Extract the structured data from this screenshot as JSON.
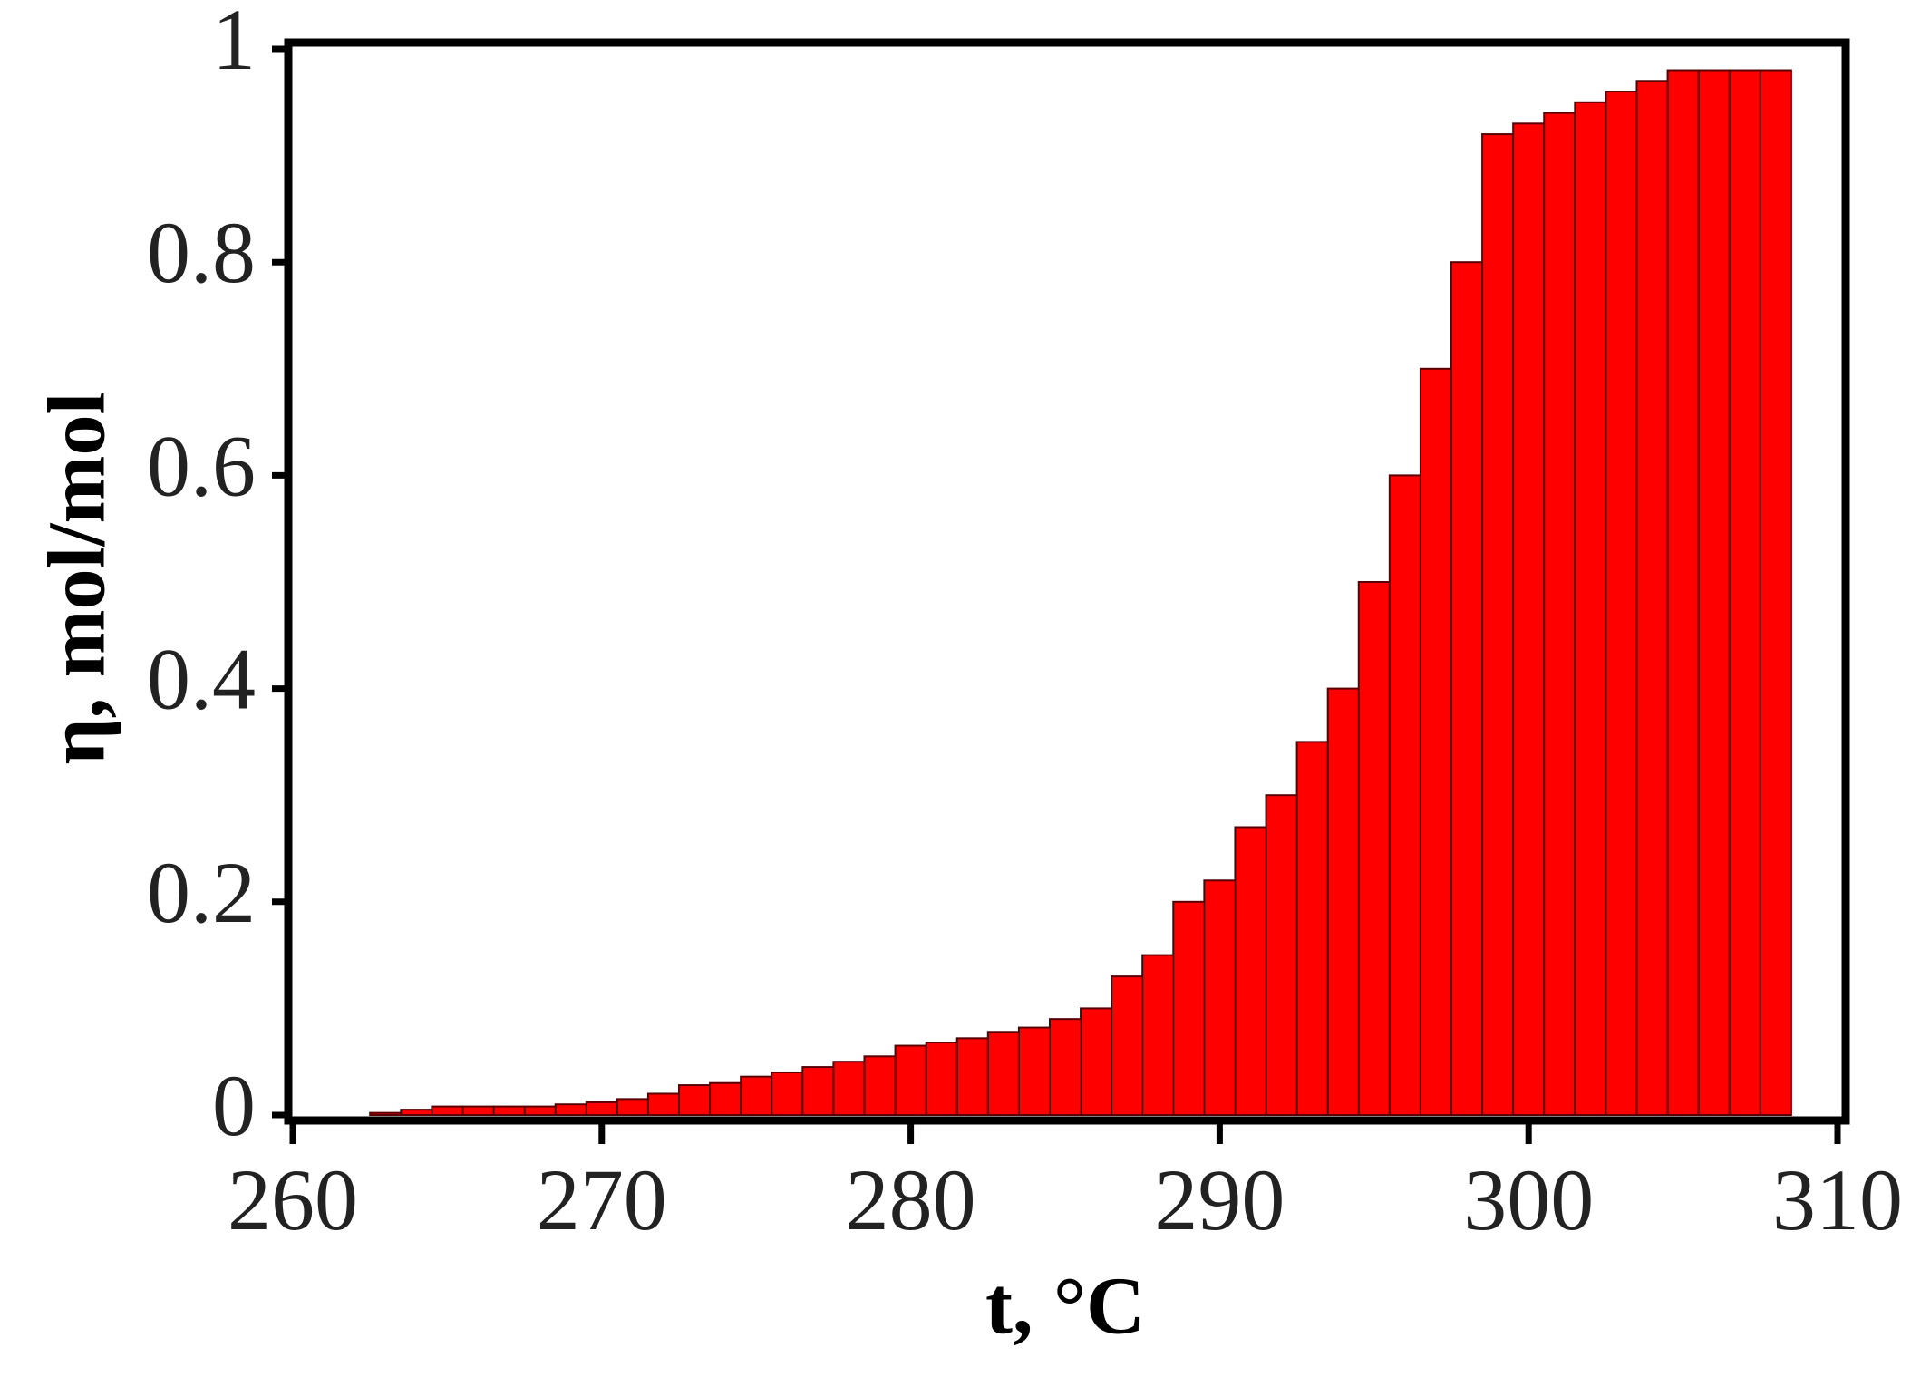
{
  "chart_data": {
    "type": "histogram",
    "x_label": "t, °C",
    "y_label": "η, mol/mol",
    "bins": [
      262.5,
      263.5,
      264.5,
      265.5,
      266.5,
      267.5,
      268.5,
      269.5,
      270.5,
      271.5,
      272.5,
      273.5,
      274.5,
      275.5,
      276.5,
      277.5,
      278.5,
      279.5,
      280.5,
      281.5,
      282.5,
      283.5,
      284.5,
      285.5,
      286.5,
      287.5,
      288.5,
      289.5,
      290.5,
      291.5,
      292.5,
      293.5,
      294.5,
      295.5,
      296.5,
      297.5,
      298.5,
      299.5,
      300.5,
      301.5,
      302.5,
      303.5,
      304.5,
      305.5,
      306.5,
      307.5,
      308.5
    ],
    "values": [
      0.002,
      0.005,
      0.008,
      0.008,
      0.008,
      0.008,
      0.01,
      0.012,
      0.015,
      0.02,
      0.028,
      0.03,
      0.036,
      0.04,
      0.045,
      0.05,
      0.055,
      0.065,
      0.068,
      0.072,
      0.078,
      0.082,
      0.09,
      0.1,
      0.13,
      0.15,
      0.2,
      0.22,
      0.27,
      0.3,
      0.35,
      0.4,
      0.5,
      0.6,
      0.7,
      0.8,
      0.92,
      0.93,
      0.94,
      0.95,
      0.96,
      0.97,
      0.98,
      0.98,
      0.98,
      0.98
    ],
    "color": "#ff0000",
    "xlim": [
      260,
      310
    ],
    "xticks": [
      260,
      270,
      280,
      290,
      300,
      310
    ],
    "ylim": [
      0,
      1
    ],
    "yticks": [
      0,
      0.2,
      0.4,
      0.6,
      0.8,
      1
    ],
    "grid": false
  }
}
